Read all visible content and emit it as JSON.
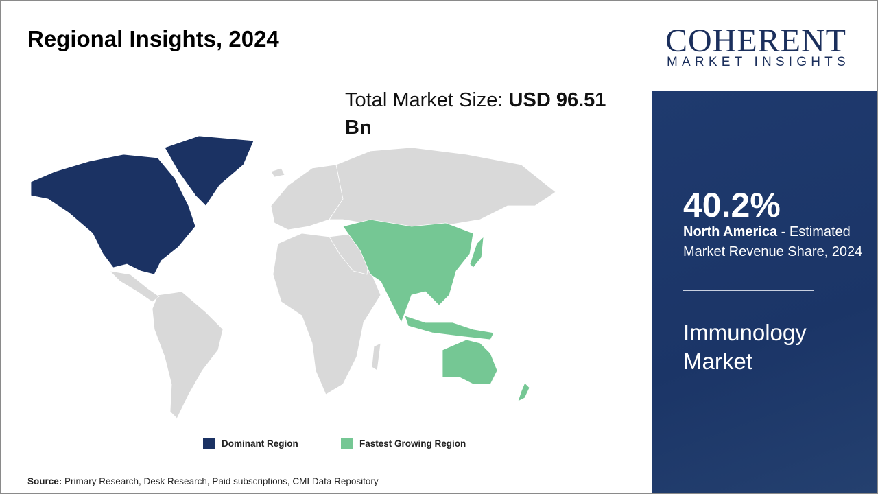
{
  "title": "Regional Insights, 2024",
  "total": {
    "label": "Total Market Size: ",
    "value": "USD 96.51 Bn"
  },
  "legend": [
    {
      "label": "Dominant Region",
      "color": "#1b3263"
    },
    {
      "label": "Fastest Growing Region",
      "color": "#75c794"
    }
  ],
  "source": {
    "label": "Source:",
    "text": " Primary Research, Desk Research, Paid subscriptions, CMI Data Repository"
  },
  "logo": {
    "line1": "COHERENT",
    "line2": "MARKET INSIGHTS"
  },
  "sidebar": {
    "percent": "40.2%",
    "region": "North America",
    "description": " - Estimated Market Revenue Share, 2024",
    "market": "Immunology Market"
  },
  "map": {
    "dominant_region": "North America",
    "fastest_growing_region": "Asia Pacific",
    "other_color": "#d9d9d9"
  }
}
